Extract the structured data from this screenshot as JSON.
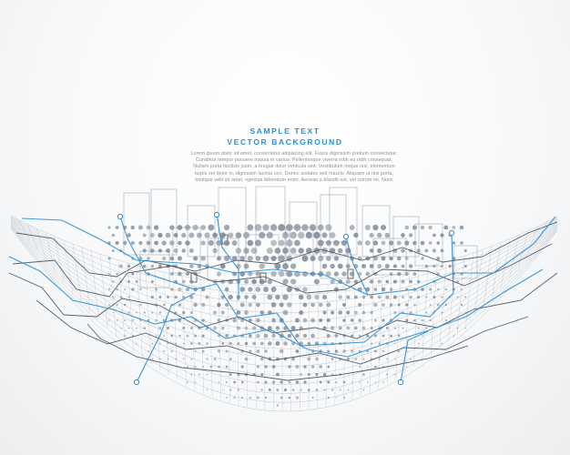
{
  "headline": {
    "line1": "SAMPLE TEXT",
    "line2": "VECTOR BACKGROUND"
  },
  "body_lines": [
    "Lorem ipsum dolor sit amet, consectetur adipiscing elit. Fusce dignissim pretium consectetur.",
    "Curabitur tempor posuere massa in varius. Pellentesque viverra nibh eu nibh consequat,",
    "Nullam porta facilisis justo, a feugiat dolor vehicula sed. Vestibulum neque nisi, elementum",
    "turpis vel dolor in, dignissim lacinia orci. Donec sodales sed mauris. Aliquam ut nisi porta,",
    "tristique velit sit amet, egestas bibendum enim. Aenean a blandit est, vel rutrum mi. Nunc"
  ],
  "colors": {
    "accent": "#2a8fd8",
    "circuit_dark": "#3c4756",
    "dots": "#7e8a98",
    "frames": "#9aa3ad"
  }
}
